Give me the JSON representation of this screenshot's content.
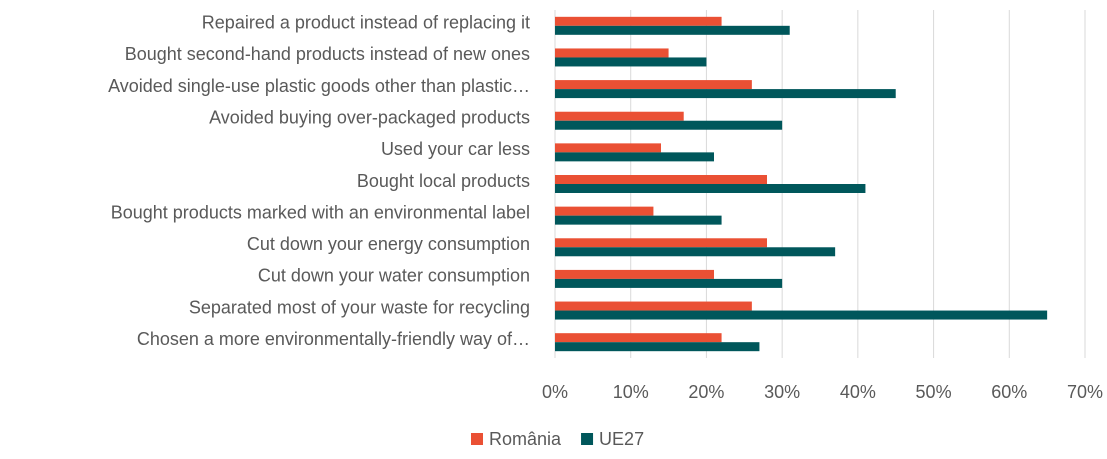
{
  "chart_data": {
    "type": "bar",
    "orientation": "horizontal",
    "categories": [
      "Repaired a product instead of replacing it",
      "Bought second-hand products instead of new ones",
      "Avoided single-use plastic goods other than plastic…",
      "Avoided buying over-packaged products",
      "Used your car less",
      "Bought local products",
      "Bought products marked with an environmental label",
      "Cut down your energy consumption",
      "Cut down your water consumption",
      "Separated most of your waste for recycling",
      "Chosen a more environmentally-friendly way of…"
    ],
    "series": [
      {
        "name": "România",
        "color": "#ea5034",
        "values": [
          22,
          15,
          26,
          17,
          14,
          28,
          13,
          28,
          21,
          26,
          22
        ]
      },
      {
        "name": "UE27",
        "color": "#00575b",
        "values": [
          31,
          20,
          45,
          30,
          21,
          41,
          22,
          37,
          30,
          65,
          27
        ]
      }
    ],
    "xlim": [
      0,
      70
    ],
    "xticks": [
      {
        "value": 0,
        "label": "0%"
      },
      {
        "value": 10,
        "label": "10%"
      },
      {
        "value": 20,
        "label": "20%"
      },
      {
        "value": 30,
        "label": "30%"
      },
      {
        "value": 40,
        "label": "40%"
      },
      {
        "value": 50,
        "label": "50%"
      },
      {
        "value": 60,
        "label": "60%"
      },
      {
        "value": 70,
        "label": "70%"
      }
    ],
    "grid": true,
    "legend": "bottom"
  }
}
